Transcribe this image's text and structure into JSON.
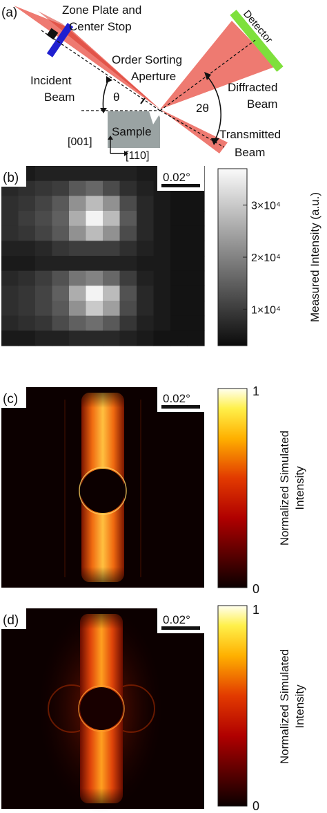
{
  "panel_a": {
    "label": "(a)",
    "zone_plate_line1": "Zone Plate and",
    "zone_plate_line2": "Center Stop",
    "detector": "Detector",
    "osa_line1": "Order Sorting",
    "osa_line2": "Aperture",
    "incident_line1": "Incident",
    "incident_line2": "Beam",
    "theta": "θ",
    "two_theta": "2θ",
    "diffracted_line1": "Diffracted",
    "diffracted_line2": "Beam",
    "sample": "Sample",
    "transmitted_line1": "Transmitted",
    "transmitted_line2": "Beam",
    "axis_001": "[001]",
    "axis_110": "[110]",
    "colors": {
      "beam": "#e8463a",
      "zone_plate": "#1f1fd0",
      "detector": "#7ee03c",
      "sample": "#9aa3a3"
    }
  },
  "panel_b": {
    "label": "(b)",
    "scalebar": "0.02°",
    "colorbar_label": "Measured  Intensity (a.u.)",
    "colorbar_ticks": [
      "3×10⁴",
      "2×10⁴",
      "1×10⁴"
    ],
    "colorbar_tick_values": [
      30000,
      20000,
      10000
    ],
    "colorbar_range": [
      3000,
      37000
    ],
    "colormap": "gray"
  },
  "panel_c": {
    "label": "(c)",
    "scalebar": "0.02°",
    "colorbar_line1": "Normalized Simulated",
    "colorbar_line2": "Intensity",
    "colorbar_max": "1",
    "colorbar_min": "0",
    "colormap": "hot"
  },
  "panel_d": {
    "label": "(d)",
    "scalebar": "0.02°",
    "colorbar_line1": "Normalized Simulated",
    "colorbar_line2": "Intensity",
    "colorbar_max": "1",
    "colorbar_min": "0",
    "colormap": "hot"
  },
  "chart_data": {
    "type": "heatmap",
    "grid": "12x12",
    "colorbar_range": [
      3000,
      37000
    ],
    "values": [
      [
        5000,
        5000,
        6000,
        6000,
        6000,
        6000,
        6000,
        6000,
        5000,
        5000,
        4000,
        4000
      ],
      [
        7000,
        8000,
        9000,
        10000,
        14000,
        16000,
        12000,
        8000,
        6000,
        5000,
        4000,
        4000
      ],
      [
        8000,
        9000,
        11000,
        14000,
        22000,
        28000,
        22000,
        12000,
        7000,
        5000,
        4000,
        4000
      ],
      [
        8000,
        10000,
        12000,
        15000,
        26000,
        36000,
        28000,
        14000,
        7000,
        5000,
        4000,
        4000
      ],
      [
        8000,
        9000,
        11000,
        14000,
        22000,
        28000,
        22000,
        12000,
        7000,
        5000,
        4000,
        4000
      ],
      [
        6000,
        6000,
        7000,
        9000,
        10000,
        10000,
        10000,
        8000,
        6000,
        5000,
        4000,
        4000
      ],
      [
        5000,
        5000,
        6000,
        6000,
        6000,
        6000,
        6000,
        6000,
        5000,
        5000,
        4000,
        4000
      ],
      [
        7000,
        8000,
        10000,
        13000,
        18000,
        20000,
        16000,
        10000,
        6000,
        5000,
        4000,
        4000
      ],
      [
        8000,
        9000,
        11000,
        15000,
        26000,
        36000,
        28000,
        13000,
        7000,
        5000,
        4000,
        4000
      ],
      [
        8000,
        9000,
        11000,
        14000,
        22000,
        30000,
        24000,
        12000,
        7000,
        5000,
        4000,
        4000
      ],
      [
        7000,
        8000,
        9000,
        12000,
        15000,
        17000,
        14000,
        9000,
        6000,
        5000,
        4000,
        4000
      ],
      [
        5000,
        5000,
        6000,
        6000,
        7000,
        7000,
        7000,
        6000,
        5000,
        4000,
        4000,
        4000
      ]
    ]
  }
}
